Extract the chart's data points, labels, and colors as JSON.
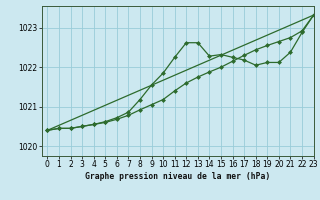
{
  "title": "Graphe pression niveau de la mer (hPa)",
  "background_color": "#cce8f0",
  "grid_color": "#99ccd9",
  "line_color": "#2d6b2d",
  "xlim": [
    -0.5,
    23
  ],
  "ylim": [
    1019.75,
    1023.55
  ],
  "xticks": [
    0,
    1,
    2,
    3,
    4,
    5,
    6,
    7,
    8,
    9,
    10,
    11,
    12,
    13,
    14,
    15,
    16,
    17,
    18,
    19,
    20,
    21,
    22,
    23
  ],
  "yticks": [
    1020,
    1021,
    1022,
    1023
  ],
  "curve1_x": [
    0,
    1,
    2,
    3,
    4,
    5,
    6,
    7,
    8,
    9,
    10,
    11,
    12,
    13,
    14,
    15,
    16,
    17,
    18,
    19,
    20,
    21,
    22,
    23
  ],
  "curve1_y": [
    1020.4,
    1020.45,
    1020.45,
    1020.5,
    1020.55,
    1020.62,
    1020.72,
    1020.86,
    1021.18,
    1021.55,
    1021.85,
    1022.25,
    1022.62,
    1022.62,
    1022.28,
    1022.32,
    1022.25,
    1022.18,
    1022.05,
    1022.12,
    1022.12,
    1022.38,
    1022.88,
    1023.32
  ],
  "curve2_x": [
    0,
    1,
    2,
    3,
    4,
    5,
    6,
    7,
    8,
    9,
    10,
    11,
    12,
    13,
    14,
    15,
    16,
    17,
    18,
    19,
    20,
    21,
    22,
    23
  ],
  "curve2_y": [
    1020.4,
    1020.45,
    1020.45,
    1020.5,
    1020.55,
    1020.6,
    1020.68,
    1020.78,
    1020.92,
    1021.05,
    1021.18,
    1021.4,
    1021.6,
    1021.75,
    1021.88,
    1022.0,
    1022.15,
    1022.3,
    1022.44,
    1022.55,
    1022.65,
    1022.75,
    1022.92,
    1023.32
  ],
  "line3_x": [
    0,
    23
  ],
  "line3_y": [
    1020.4,
    1023.32
  ]
}
